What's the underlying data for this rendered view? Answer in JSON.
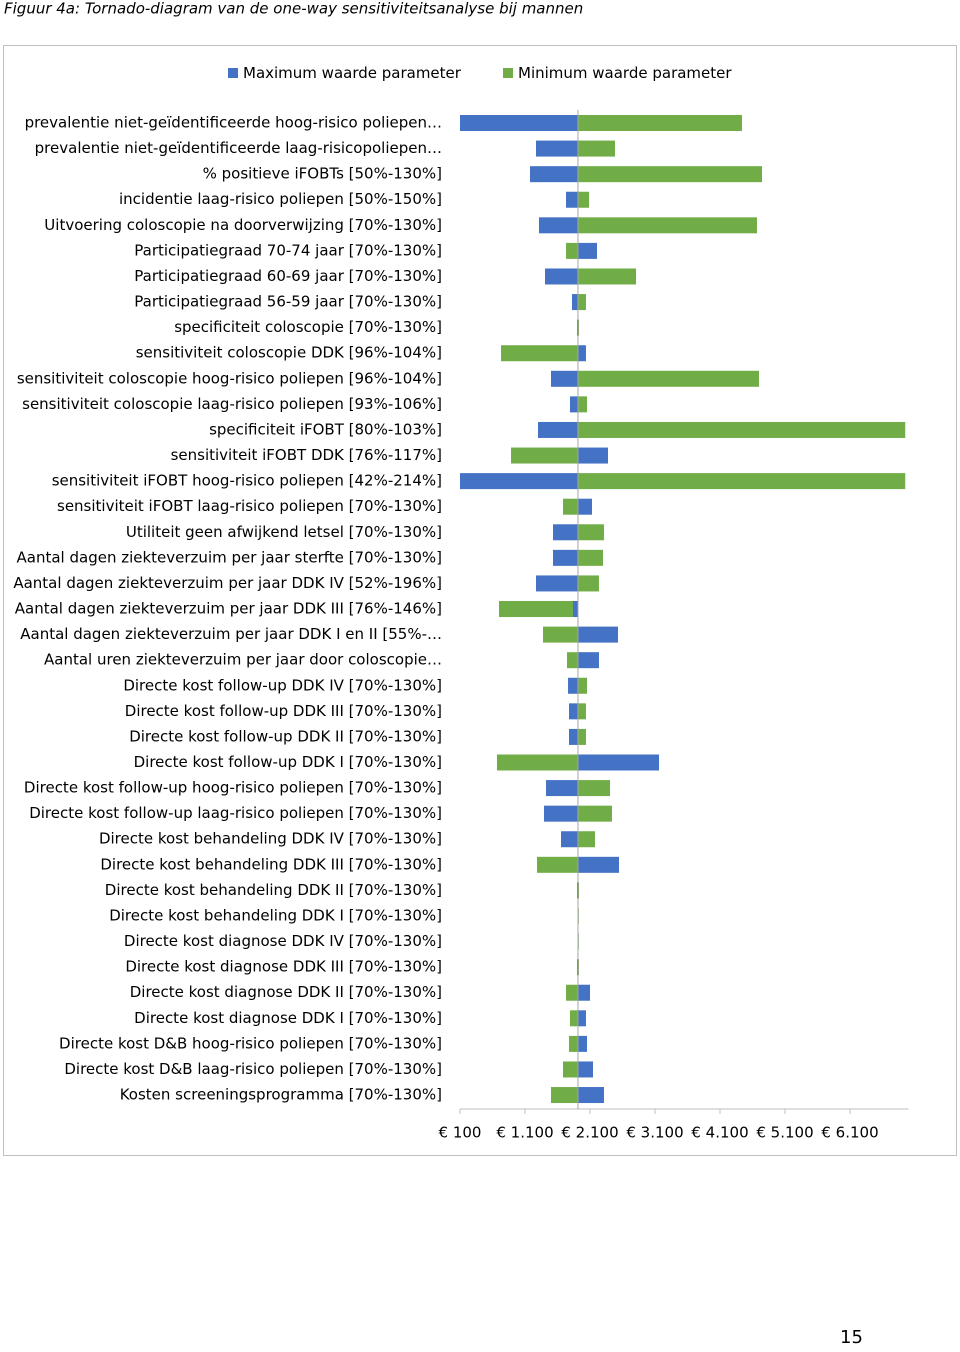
{
  "caption": "Figuur 4a: Tornado-diagram van de one-way sensitiviteitsanalyse bij mannen",
  "page_number": "15",
  "chart_data": {
    "type": "tornado",
    "categories": [
      "prevalentie niet-geïdentificeerde hoog-risico poliepen…",
      "prevalentie niet-geïdentificeerde laag-risicopoliepen…",
      "% positieve iFOBTs [50%-130%]",
      "incidentie laag-risico poliepen [50%-150%]",
      "Uitvoering coloscopie na doorverwijzing [70%-130%]",
      "Participatiegraad 70-74 jaar [70%-130%]",
      "Participatiegraad 60-69 jaar [70%-130%]",
      "Participatiegraad 56-59 jaar [70%-130%]",
      "specificiteit coloscopie [70%-130%]",
      "sensitiviteit coloscopie DDK [96%-104%]",
      "sensitiviteit coloscopie hoog-risico poliepen [96%-104%]",
      "sensitiviteit coloscopie laag-risico poliepen [93%-106%]",
      "specificiteit iFOBT [80%-103%]",
      "sensitiviteit iFOBT DDK [76%-117%]",
      "sensitiviteit iFOBT hoog-risico poliepen [42%-214%]",
      "sensitiviteit iFOBT laag-risico poliepen [70%-130%]",
      "Utiliteit geen afwijkend letsel [70%-130%]",
      "Aantal dagen ziekteverzuim per jaar sterfte [70%-130%]",
      "Aantal dagen ziekteverzuim per jaar DDK IV [52%-196%]",
      "Aantal dagen ziekteverzuim per jaar DDK III [76%-146%]",
      "Aantal dagen ziekteverzuim per jaar DDK I en II [55%-…",
      "Aantal uren ziekteverzuim per jaar door coloscopie…",
      "Directe kost follow-up  DDK IV [70%-130%]",
      "Directe kost follow-up  DDK III [70%-130%]",
      "Directe kost follow-up  DDK II [70%-130%]",
      "Directe kost follow-up DDK I [70%-130%]",
      "Directe kost follow-up hoog-risico poliepen [70%-130%]",
      "Directe kost follow-up laag-risico poliepen [70%-130%]",
      "Directe kost behandeling  DDK IV [70%-130%]",
      "Directe kost behandeling  DDK III [70%-130%]",
      "Directe kost behandeling  DDK II [70%-130%]",
      "Directe kost behandeling  DDK I [70%-130%]",
      "Directe kost diagnose  DDK IV [70%-130%]",
      "Directe kost diagnose  DDK III [70%-130%]",
      "Directe kost diagnose  DDK II [70%-130%]",
      "Directe kost diagnose  DDK I [70%-130%]",
      "Directe kost D&B hoog-risico poliepen [70%-130%]",
      "Directe kost D&B laag-risico poliepen [70%-130%]",
      "Kosten screeningsprogramma [70%-130%]"
    ],
    "base": 1915,
    "series": [
      {
        "name": "Maximum waarde parameter",
        "color": "#4472c4",
        "values": [
          100,
          1269,
          1177,
          1731,
          1315,
          2208,
          1408,
          1823,
          1900,
          2038,
          1500,
          1792,
          1300,
          2377,
          100,
          2131,
          1531,
          1531,
          1269,
          1838,
          2531,
          2238,
          1762,
          1777,
          1777,
          3162,
          1423,
          1392,
          1654,
          2546,
          1900,
          1910,
          1910,
          1900,
          2100,
          2038,
          2054,
          2146,
          2315
        ]
      },
      {
        "name": "Minimum waarde parameter",
        "color": "#70ad47",
        "values": [
          4438,
          2485,
          4746,
          2085,
          4669,
          1731,
          2808,
          2038,
          1931,
          731,
          4700,
          2054,
          6950,
          885,
          6950,
          1685,
          2315,
          2300,
          2238,
          700,
          1377,
          1746,
          2054,
          2038,
          2038,
          669,
          2408,
          2438,
          2177,
          1285,
          1931,
          1920,
          1920,
          1930,
          1731,
          1792,
          1777,
          1685,
          1500
        ]
      }
    ],
    "xlim": [
      100,
      7000
    ],
    "xticks": [
      {
        "value": 100,
        "label": "€ 100"
      },
      {
        "value": 1100,
        "label": "€ 1.100"
      },
      {
        "value": 2100,
        "label": "€ 2.100"
      },
      {
        "value": 3100,
        "label": "€ 3.100"
      },
      {
        "value": 4100,
        "label": "€ 4.100"
      },
      {
        "value": 5100,
        "label": "€ 5.100"
      },
      {
        "value": 6100,
        "label": "€ 6.100"
      }
    ]
  }
}
